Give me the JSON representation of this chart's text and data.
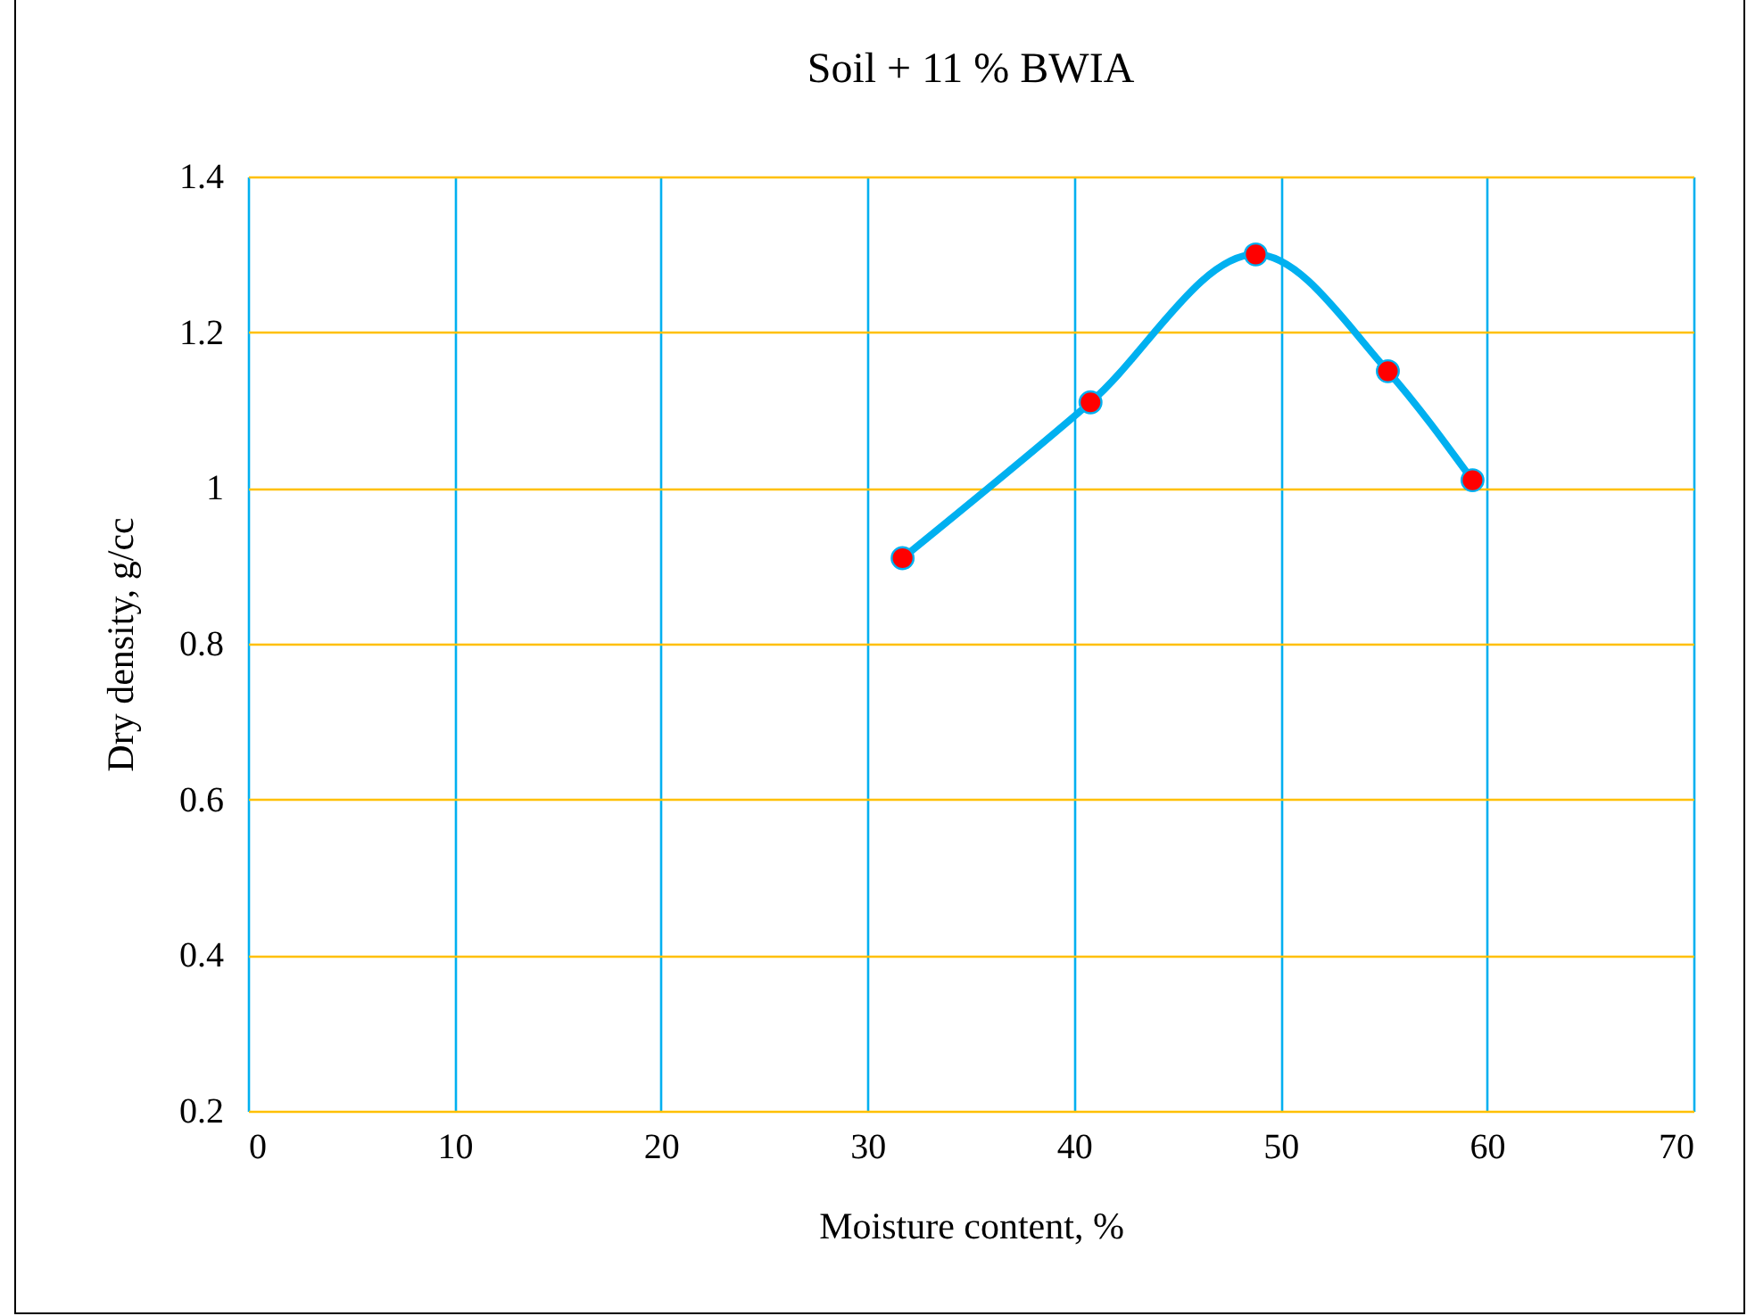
{
  "chart_data": {
    "type": "line",
    "title": "Soil + 11 % BWIA",
    "xlabel": "Moisture content, %",
    "ylabel": "Dry density, g/cc",
    "x": [
      31.7,
      40.8,
      48.8,
      55.2,
      59.3
    ],
    "series": [
      {
        "color": "#00b0f0",
        "values": [
          0.91,
          1.11,
          1.3,
          1.15,
          1.01
        ]
      }
    ],
    "xlim": [
      0,
      70
    ],
    "xticks": [
      0,
      10,
      20,
      30,
      40,
      50,
      60,
      70
    ],
    "ylim": [
      0.2,
      1.4
    ],
    "yticks": [
      0.2,
      0.4,
      0.6,
      0.8,
      1,
      1.2,
      1.4
    ],
    "grid": true,
    "marker": "circle",
    "line_style": "solid"
  }
}
